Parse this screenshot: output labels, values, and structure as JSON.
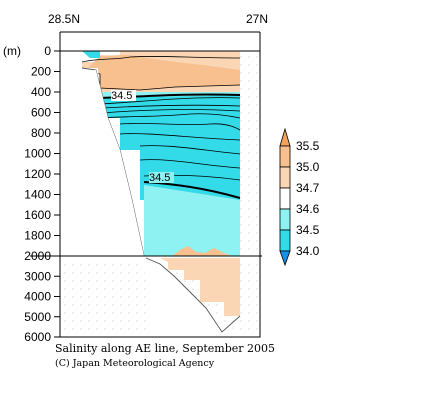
{
  "chart_data": {
    "type": "heatmap",
    "title": "",
    "x_axis": {
      "left_label": "28.5N",
      "right_label": "27N"
    },
    "y_axis": {
      "unit_label": "(m)",
      "upper_ticks": [
        0,
        200,
        400,
        600,
        800,
        1000,
        1200,
        1400,
        1600,
        1800,
        2000
      ],
      "lower_ticks": [
        3000,
        4000,
        5000,
        6000
      ],
      "break_depth": 2000,
      "upper_range": [
        0,
        2000
      ],
      "lower_range": [
        2000,
        6000
      ]
    },
    "colorbar": {
      "labels": [
        "35.5",
        "35.0",
        "34.7",
        "34.6",
        "34.5",
        "34.0"
      ],
      "colors": [
        "#f5a35a",
        "#f7c08e",
        "#fad6b4",
        "#ffffff",
        "#8ff2f2",
        "#33dbe8"
      ]
    },
    "contour_labels": [
      {
        "text": "34.5",
        "depth": 430
      },
      {
        "text": "34.5",
        "depth": 1270
      }
    ],
    "caption": "Salinity along AE line, September 2005",
    "credit": "(C) Japan Meteorological Agency"
  }
}
